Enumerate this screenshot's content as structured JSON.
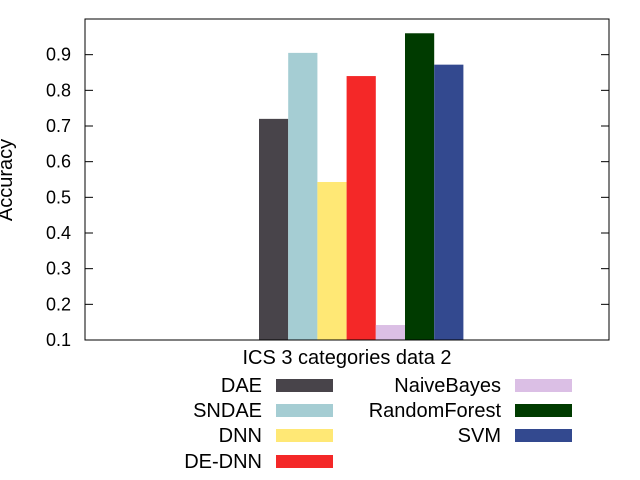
{
  "chart_data": {
    "type": "bar",
    "categories": [
      "ICS 3 categories data 2"
    ],
    "title": "",
    "xlabel": "",
    "ylabel": "Accuracy",
    "ylim": [
      0.1,
      1.0
    ],
    "yticks": [
      "0.1",
      "0.2",
      "0.3",
      "0.4",
      "0.5",
      "0.6",
      "0.7",
      "0.8",
      "0.9"
    ],
    "grid": false,
    "legend_position": "bottom",
    "series": [
      {
        "name": "DAE",
        "values": [
          0.72
        ],
        "color": "#48444a"
      },
      {
        "name": "SNDAE",
        "values": [
          0.905
        ],
        "color": "#a5cdd3"
      },
      {
        "name": "DNN",
        "values": [
          0.543
        ],
        "color": "#ffe875"
      },
      {
        "name": "DE-DNN",
        "values": [
          0.84
        ],
        "color": "#f42828"
      },
      {
        "name": "NaiveBayes",
        "values": [
          0.142
        ],
        "color": "#dbbfe5"
      },
      {
        "name": "RandomForest",
        "values": [
          0.96
        ],
        "color": "#003b00"
      },
      {
        "name": "SVM",
        "values": [
          0.872
        ],
        "color": "#33498f"
      }
    ]
  }
}
